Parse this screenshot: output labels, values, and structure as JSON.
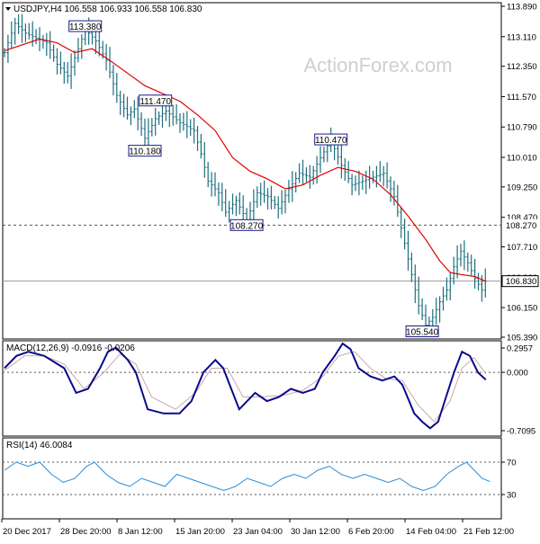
{
  "header": {
    "symbol_timeframe": "USDJPY,H4",
    "ohlc": "106.558 106.933 106.558 106.830"
  },
  "watermark": "ActionForex.com",
  "colors": {
    "candle": "#1f6f7f",
    "ma": "#e00000",
    "macd_main": "#0a0a8c",
    "macd_signal": "#c9a9a9",
    "rsi": "#2a8cd6",
    "grid_dash": "#555555",
    "price_line": "#9a9a9a",
    "axis": "#000000"
  },
  "x_axis": {
    "labels": [
      "20 Dec 2017",
      "28 Dec 20:00",
      "8 Jan 12:00",
      "15 Jan 20:00",
      "23 Jan 04:00",
      "30 Jan 12:00",
      "6 Feb 20:00",
      "14 Feb 04:00",
      "21 Feb 12:00"
    ]
  },
  "chart_data": [
    {
      "type": "line",
      "panel": "price",
      "y_ticks": [
        "113.890",
        "113.110",
        "112.350",
        "111.570",
        "110.790",
        "110.010",
        "109.250",
        "108.470",
        "107.710",
        "106.930",
        "106.150",
        "105.390"
      ],
      "ylim": [
        105.39,
        113.89
      ],
      "horizontal_levels": [
        {
          "value": 108.27,
          "label": "108.270",
          "style": "dashed"
        },
        {
          "value": 106.83,
          "label": "106.830",
          "style": "current-price"
        }
      ],
      "annotations": [
        {
          "label": "113.380",
          "bar": 23,
          "value": 113.38
        },
        {
          "label": "111.470",
          "bar": 43,
          "value": 111.47
        },
        {
          "label": "110.180",
          "bar": 40,
          "value": 110.18
        },
        {
          "label": "110.470",
          "bar": 93,
          "value": 110.47
        },
        {
          "label": "108.270",
          "bar": 69,
          "value": 108.27
        },
        {
          "label": "105.540",
          "bar": 119,
          "value": 105.54
        }
      ],
      "close_path": [
        [
          0,
          112.7
        ],
        [
          3,
          113.45
        ],
        [
          6,
          113.2
        ],
        [
          12,
          112.95
        ],
        [
          15,
          112.4
        ],
        [
          18,
          112.1
        ],
        [
          21,
          112.8
        ],
        [
          23,
          113.3
        ],
        [
          26,
          113.0
        ],
        [
          29,
          112.5
        ],
        [
          32,
          111.6
        ],
        [
          35,
          111.1
        ],
        [
          37,
          111.25
        ],
        [
          40,
          110.5
        ],
        [
          43,
          111.0
        ],
        [
          46,
          111.2
        ],
        [
          50,
          110.9
        ],
        [
          54,
          110.7
        ],
        [
          56,
          110.1
        ],
        [
          58,
          109.4
        ],
        [
          61,
          109.1
        ],
        [
          63,
          108.6
        ],
        [
          66,
          108.9
        ],
        [
          69,
          108.4
        ],
        [
          72,
          109.1
        ],
        [
          75,
          109.0
        ],
        [
          78,
          108.7
        ],
        [
          81,
          109.2
        ],
        [
          84,
          109.6
        ],
        [
          87,
          109.5
        ],
        [
          90,
          110.0
        ],
        [
          93,
          110.45
        ],
        [
          96,
          109.8
        ],
        [
          99,
          109.3
        ],
        [
          102,
          109.4
        ],
        [
          105,
          109.5
        ],
        [
          108,
          109.6
        ],
        [
          111,
          109.0
        ],
        [
          114,
          107.8
        ],
        [
          116,
          107.0
        ],
        [
          118,
          106.2
        ],
        [
          120,
          105.7
        ],
        [
          122,
          105.9
        ],
        [
          124,
          106.3
        ],
        [
          126,
          106.6
        ],
        [
          128,
          107.2
        ],
        [
          130,
          107.6
        ],
        [
          132,
          107.3
        ],
        [
          134,
          106.9
        ],
        [
          136,
          106.6
        ],
        [
          137,
          106.83
        ]
      ],
      "moving_average": [
        [
          0,
          112.75
        ],
        [
          10,
          113.05
        ],
        [
          15,
          112.95
        ],
        [
          20,
          112.7
        ],
        [
          25,
          112.8
        ],
        [
          30,
          112.5
        ],
        [
          40,
          111.85
        ],
        [
          50,
          111.45
        ],
        [
          55,
          111.1
        ],
        [
          60,
          110.7
        ],
        [
          65,
          110.0
        ],
        [
          70,
          109.65
        ],
        [
          75,
          109.45
        ],
        [
          80,
          109.2
        ],
        [
          85,
          109.3
        ],
        [
          90,
          109.55
        ],
        [
          95,
          109.75
        ],
        [
          100,
          109.65
        ],
        [
          105,
          109.45
        ],
        [
          110,
          109.05
        ],
        [
          115,
          108.5
        ],
        [
          120,
          107.9
        ],
        [
          124,
          107.35
        ],
        [
          127,
          107.05
        ],
        [
          130,
          107.0
        ],
        [
          134,
          106.95
        ],
        [
          137,
          106.83
        ]
      ]
    },
    {
      "type": "line",
      "panel": "macd",
      "title": "MACD(12,26,9) -0.0916 -0.0206",
      "y_ticks": [
        "0.2957",
        "0.000",
        "-0.7095"
      ],
      "ylim": [
        -0.7095,
        0.2957
      ],
      "series": [
        {
          "name": "MACD",
          "values": [
            [
              0,
              0.05
            ],
            [
              3,
              0.2
            ],
            [
              6,
              0.25
            ],
            [
              10,
              0.2
            ],
            [
              15,
              0.05
            ],
            [
              18,
              -0.25
            ],
            [
              21,
              -0.2
            ],
            [
              24,
              0.05
            ],
            [
              26,
              0.25
            ],
            [
              28,
              0.3
            ],
            [
              31,
              0.15
            ],
            [
              33,
              0.0
            ],
            [
              36,
              -0.45
            ],
            [
              40,
              -0.5
            ],
            [
              44,
              -0.5
            ],
            [
              47,
              -0.35
            ],
            [
              50,
              0.0
            ],
            [
              53,
              0.15
            ],
            [
              55,
              0.05
            ],
            [
              57,
              -0.2
            ],
            [
              59,
              -0.45
            ],
            [
              61,
              -0.35
            ],
            [
              63,
              -0.25
            ],
            [
              66,
              -0.35
            ],
            [
              69,
              -0.3
            ],
            [
              72,
              -0.2
            ],
            [
              75,
              -0.25
            ],
            [
              78,
              -0.2
            ],
            [
              80,
              0.0
            ],
            [
              83,
              0.2
            ],
            [
              85,
              0.35
            ],
            [
              87,
              0.28
            ],
            [
              89,
              0.05
            ],
            [
              92,
              -0.05
            ],
            [
              95,
              -0.1
            ],
            [
              98,
              -0.05
            ],
            [
              100,
              -0.15
            ],
            [
              103,
              -0.5
            ],
            [
              105,
              -0.6
            ],
            [
              107,
              -0.68
            ],
            [
              109,
              -0.6
            ],
            [
              111,
              -0.3
            ],
            [
              113,
              0.0
            ],
            [
              115,
              0.25
            ],
            [
              117,
              0.2
            ],
            [
              119,
              0.0
            ],
            [
              121,
              -0.09
            ]
          ]
        },
        {
          "name": "Signal",
          "values": [
            [
              0,
              0.02
            ],
            [
              5,
              0.2
            ],
            [
              10,
              0.2
            ],
            [
              15,
              0.1
            ],
            [
              20,
              -0.2
            ],
            [
              25,
              0.0
            ],
            [
              29,
              0.22
            ],
            [
              33,
              0.1
            ],
            [
              37,
              -0.3
            ],
            [
              43,
              -0.45
            ],
            [
              48,
              -0.25
            ],
            [
              52,
              0.05
            ],
            [
              56,
              0.05
            ],
            [
              60,
              -0.3
            ],
            [
              64,
              -0.3
            ],
            [
              70,
              -0.28
            ],
            [
              75,
              -0.22
            ],
            [
              80,
              -0.05
            ],
            [
              84,
              0.2
            ],
            [
              88,
              0.25
            ],
            [
              92,
              0.05
            ],
            [
              96,
              -0.08
            ],
            [
              100,
              -0.1
            ],
            [
              104,
              -0.4
            ],
            [
              108,
              -0.6
            ],
            [
              112,
              -0.35
            ],
            [
              115,
              0.05
            ],
            [
              118,
              0.18
            ],
            [
              121,
              -0.02
            ]
          ]
        }
      ]
    },
    {
      "type": "line",
      "panel": "rsi",
      "title": "RSI(14) 46.0084",
      "y_ticks": [
        "70",
        "30"
      ],
      "levels": [
        70,
        30
      ],
      "ylim": [
        0,
        100
      ],
      "series": [
        {
          "name": "RSI",
          "values": [
            [
              0,
              60
            ],
            [
              3,
              70
            ],
            [
              6,
              65
            ],
            [
              9,
              70
            ],
            [
              12,
              55
            ],
            [
              15,
              45
            ],
            [
              18,
              50
            ],
            [
              21,
              65
            ],
            [
              23,
              70
            ],
            [
              26,
              55
            ],
            [
              29,
              45
            ],
            [
              32,
              40
            ],
            [
              35,
              50
            ],
            [
              38,
              45
            ],
            [
              41,
              40
            ],
            [
              44,
              55
            ],
            [
              47,
              50
            ],
            [
              50,
              45
            ],
            [
              53,
              40
            ],
            [
              56,
              35
            ],
            [
              59,
              40
            ],
            [
              62,
              50
            ],
            [
              65,
              45
            ],
            [
              68,
              40
            ],
            [
              71,
              50
            ],
            [
              74,
              55
            ],
            [
              77,
              50
            ],
            [
              80,
              60
            ],
            [
              83,
              65
            ],
            [
              86,
              55
            ],
            [
              89,
              50
            ],
            [
              92,
              55
            ],
            [
              95,
              50
            ],
            [
              98,
              45
            ],
            [
              101,
              50
            ],
            [
              104,
              40
            ],
            [
              107,
              35
            ],
            [
              110,
              40
            ],
            [
              113,
              55
            ],
            [
              116,
              65
            ],
            [
              118,
              70
            ],
            [
              120,
              60
            ],
            [
              122,
              50
            ],
            [
              124,
              46
            ]
          ]
        }
      ]
    }
  ]
}
